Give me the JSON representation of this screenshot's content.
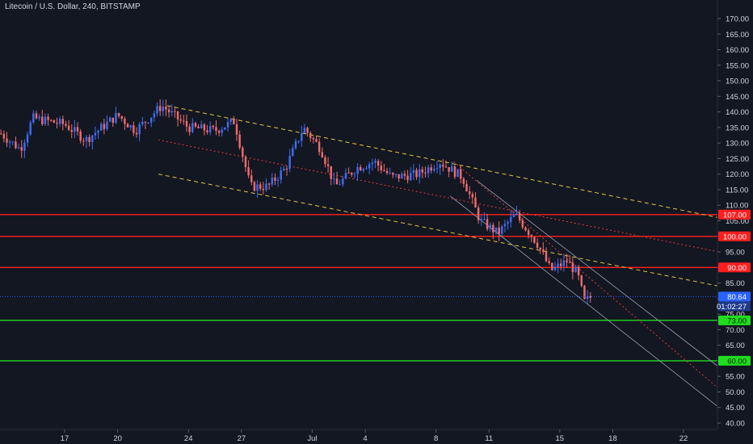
{
  "header": {
    "title": "Litecoin / U.S. Dollar, 240, BITSTAMP"
  },
  "colors": {
    "background": "#131722",
    "up_candle": "#3d6df2",
    "down_candle": "#ef6b6b",
    "resistance": "#ff1f1f",
    "support": "#1fdd1f",
    "channel_yellow": "#e8c441",
    "midline_red": "#e53935",
    "regression_channel": "#9aa1b5",
    "current_price": "#2962ff",
    "axis_text": "#d1d4dc"
  },
  "chart_data": {
    "type": "candlestick",
    "title": "Litecoin / U.S. Dollar, 240, BITSTAMP",
    "ylim": [
      37,
      173
    ],
    "y_ticks": [
      40,
      45,
      50,
      55,
      60,
      65,
      70,
      75,
      80,
      85,
      90,
      95,
      100,
      105,
      110,
      115,
      120,
      125,
      130,
      135,
      140,
      145,
      150,
      155,
      160,
      165,
      170
    ],
    "y_tick_labels": [
      "40.00",
      "45.00",
      "50.00",
      "55.00",
      "60.00",
      "65.00",
      "70.00",
      "75.00",
      "80.00",
      "85.00",
      "90.00",
      "95.00",
      "100.00",
      "105.00",
      "110.00",
      "115.00",
      "120.00",
      "125.00",
      "130.00",
      "135.00",
      "140.00",
      "145.00",
      "150.00",
      "155.00",
      "160.00",
      "165.00",
      "170.00"
    ],
    "x_labels": [
      "17",
      "20",
      "24",
      "27",
      "Jul",
      "4",
      "8",
      "11",
      "15",
      "18",
      "22"
    ],
    "x_label_days": [
      17,
      20,
      24,
      27,
      31,
      34,
      38,
      41,
      45,
      48,
      52
    ],
    "x_range_days": [
      13.3,
      54.0
    ],
    "key_points": [
      {
        "day": 13.4,
        "price": 133
      },
      {
        "day": 14.5,
        "price": 128
      },
      {
        "day": 15.2,
        "price": 138
      },
      {
        "day": 17.0,
        "price": 136
      },
      {
        "day": 18.2,
        "price": 131
      },
      {
        "day": 20.0,
        "price": 139
      },
      {
        "day": 21.0,
        "price": 134
      },
      {
        "day": 22.5,
        "price": 142
      },
      {
        "day": 24.0,
        "price": 135
      },
      {
        "day": 25.5,
        "price": 134
      },
      {
        "day": 26.6,
        "price": 137
      },
      {
        "day": 27.5,
        "price": 116
      },
      {
        "day": 28.5,
        "price": 116
      },
      {
        "day": 29.5,
        "price": 122
      },
      {
        "day": 30.5,
        "price": 135
      },
      {
        "day": 31.5,
        "price": 128
      },
      {
        "day": 32.3,
        "price": 116
      },
      {
        "day": 33.5,
        "price": 122
      },
      {
        "day": 34.5,
        "price": 124
      },
      {
        "day": 35.5,
        "price": 119
      },
      {
        "day": 37.0,
        "price": 120
      },
      {
        "day": 38.2,
        "price": 124
      },
      {
        "day": 39.5,
        "price": 119
      },
      {
        "day": 40.5,
        "price": 105
      },
      {
        "day": 41.5,
        "price": 101
      },
      {
        "day": 42.5,
        "price": 107
      },
      {
        "day": 43.7,
        "price": 98
      },
      {
        "day": 44.5,
        "price": 89
      },
      {
        "day": 45.4,
        "price": 92
      },
      {
        "day": 46.0,
        "price": 88
      },
      {
        "day": 46.4,
        "price": 79
      },
      {
        "day": 46.8,
        "price": 80.64
      }
    ],
    "horizontal_levels": [
      {
        "price": 107.0,
        "label": "107.00",
        "color": "#ff1f1f",
        "kind": "resistance"
      },
      {
        "price": 100.0,
        "label": "100.00",
        "color": "#ff1f1f",
        "kind": "resistance"
      },
      {
        "price": 90.0,
        "label": "90.00",
        "color": "#ff1f1f",
        "kind": "resistance"
      },
      {
        "price": 73.0,
        "label": "73.00",
        "color": "#1fdd1f",
        "kind": "support"
      },
      {
        "price": 60.0,
        "label": "60.00",
        "color": "#1fdd1f",
        "kind": "support"
      }
    ],
    "trend_lines": [
      {
        "style": "dashed",
        "color": "#e8c441",
        "from": {
          "day": 22.8,
          "price": 142
        },
        "to": {
          "day": 54.0,
          "price": 106
        }
      },
      {
        "style": "dashed",
        "color": "#e8c441",
        "from": {
          "day": 22.3,
          "price": 120
        },
        "to": {
          "day": 54.0,
          "price": 84
        }
      },
      {
        "style": "dotted",
        "color": "#e53935",
        "from": {
          "day": 22.3,
          "price": 131
        },
        "to": {
          "day": 54.0,
          "price": 95
        }
      },
      {
        "style": "dotted",
        "color": "#e53935",
        "from": {
          "day": 39.0,
          "price": 124
        },
        "to": {
          "day": 54.0,
          "price": 51
        }
      },
      {
        "style": "solid",
        "color": "#9aa1b5",
        "from": {
          "day": 40.3,
          "price": 118
        },
        "to": {
          "day": 54.0,
          "price": 58
        }
      },
      {
        "style": "solid",
        "color": "#9aa1b5",
        "from": {
          "day": 38.8,
          "price": 113
        },
        "to": {
          "day": 54.0,
          "price": 45
        }
      }
    ],
    "current_price": {
      "price": 80.64,
      "label": "80.64",
      "countdown": "01:02:27"
    },
    "grid": false,
    "legend": "none"
  }
}
